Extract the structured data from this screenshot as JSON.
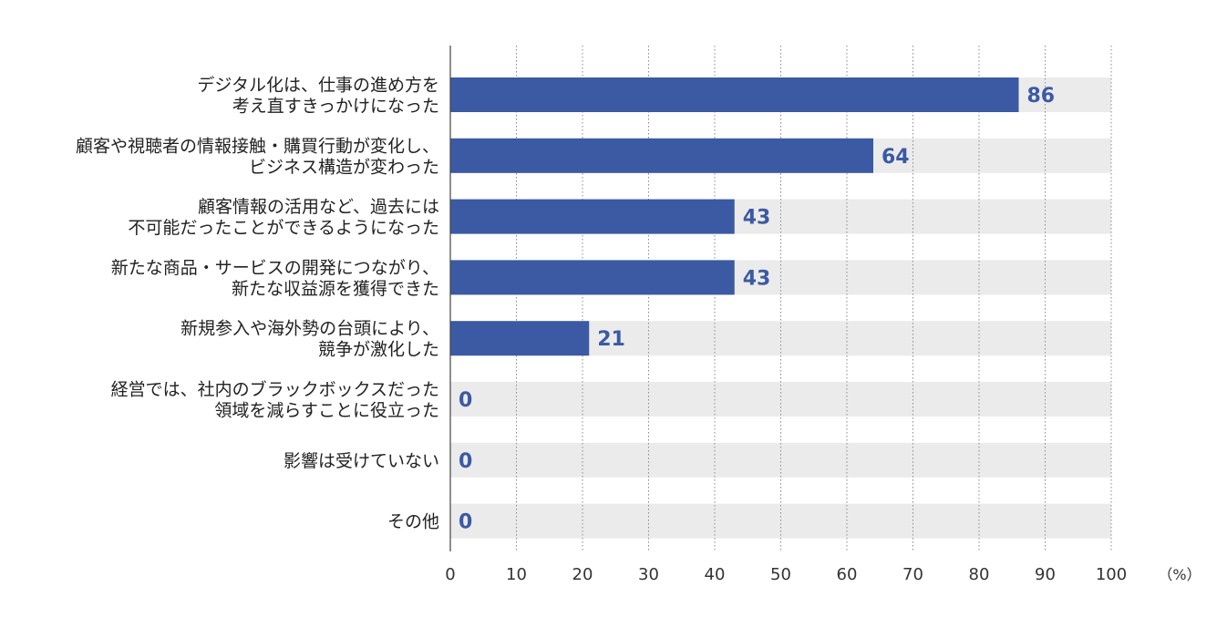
{
  "colors": {
    "bar": "#3b5aa3",
    "track": "#ebebeb",
    "value_text": "#3b5aa3",
    "grid": "#8a8a8a",
    "axis": "#444444",
    "text": "#222222"
  },
  "chart_data": {
    "type": "bar",
    "orientation": "horizontal",
    "categories": [
      [
        "デジタル化は、仕事の進め方を",
        "考え直すきっかけになった"
      ],
      [
        "顧客や視聴者の情報接触・購買行動が変化し、",
        "ビジネス構造が変わった"
      ],
      [
        "顧客情報の活用など、過去には",
        "不可能だったことができるようになった"
      ],
      [
        "新たな商品・サービスの開発につながり、",
        "新たな収益源を獲得できた"
      ],
      [
        "新規参入や海外勢の台頭により、",
        "競争が激化した"
      ],
      [
        "経営では、社内のブラックボックスだった",
        "領域を減らすことに役立った"
      ],
      [
        "影響は受けていない"
      ],
      [
        "その他"
      ]
    ],
    "values": [
      86,
      64,
      43,
      43,
      21,
      0,
      0,
      0
    ],
    "value_labels": [
      "86",
      "64",
      "43",
      "43",
      "21",
      "0",
      "0",
      "0"
    ],
    "xlim": [
      0,
      100
    ],
    "xticks": [
      "0",
      "10",
      "20",
      "30",
      "40",
      "50",
      "60",
      "70",
      "80",
      "90",
      "100"
    ],
    "xunit": "（%）",
    "grid": "vertical-dotted"
  }
}
